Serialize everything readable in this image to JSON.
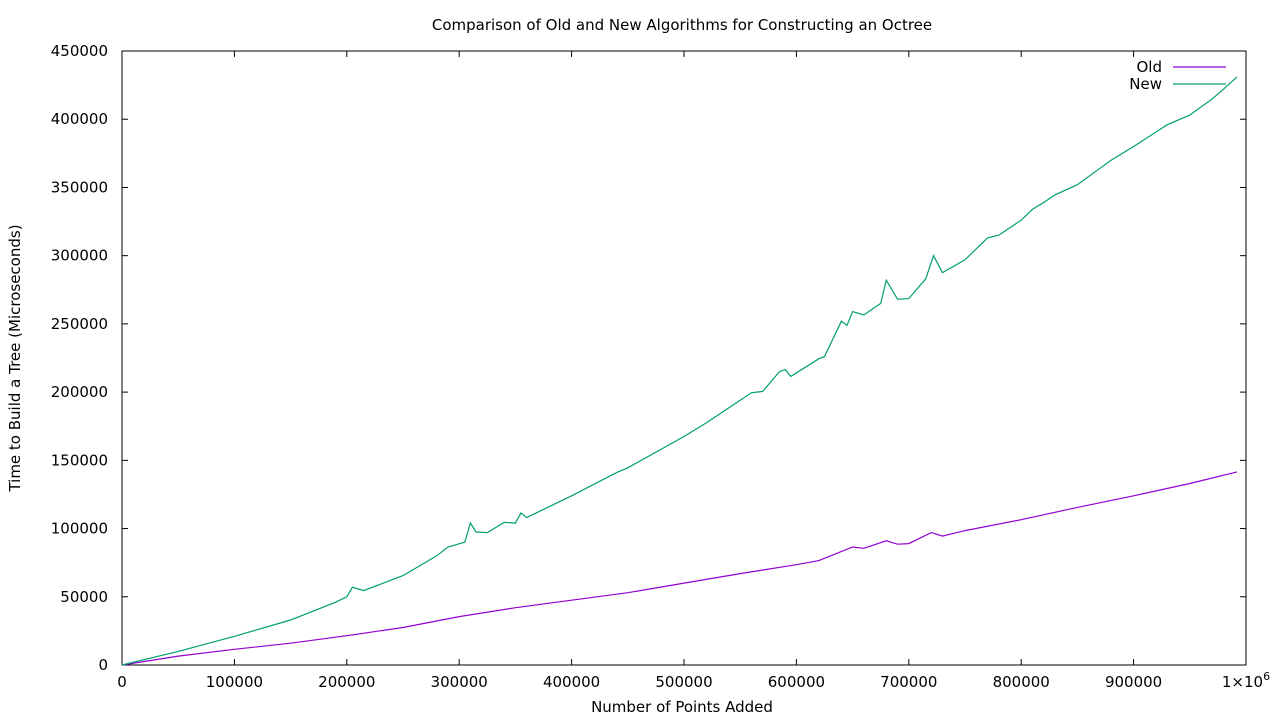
{
  "chart_data": {
    "type": "line",
    "title": "Comparison of Old and New Algorithms for Constructing an Octree",
    "xlabel": "Number of Points Added",
    "ylabel": "Time to Build a Tree (Microseconds)",
    "xlim": [
      0,
      1000000
    ],
    "ylim": [
      0,
      450000
    ],
    "x_ticks": [
      {
        "value": 0,
        "label": "0"
      },
      {
        "value": 100000,
        "label": "100000"
      },
      {
        "value": 200000,
        "label": "200000"
      },
      {
        "value": 300000,
        "label": "300000"
      },
      {
        "value": 400000,
        "label": "400000"
      },
      {
        "value": 500000,
        "label": "500000"
      },
      {
        "value": 600000,
        "label": "600000"
      },
      {
        "value": 700000,
        "label": "700000"
      },
      {
        "value": 800000,
        "label": "800000"
      },
      {
        "value": 900000,
        "label": "900000"
      },
      {
        "value": 1000000,
        "label": "1×10",
        "sup": "6"
      }
    ],
    "y_ticks": [
      {
        "value": 0,
        "label": "0"
      },
      {
        "value": 50000,
        "label": "50000"
      },
      {
        "value": 100000,
        "label": "100000"
      },
      {
        "value": 150000,
        "label": "150000"
      },
      {
        "value": 200000,
        "label": "200000"
      },
      {
        "value": 250000,
        "label": "250000"
      },
      {
        "value": 300000,
        "label": "300000"
      },
      {
        "value": 350000,
        "label": "350000"
      },
      {
        "value": 400000,
        "label": "400000"
      },
      {
        "value": 450000,
        "label": "450000"
      }
    ],
    "grid": false,
    "legend_position": "top-right",
    "series": [
      {
        "name": "Old",
        "color": "#9400d3",
        "points": [
          [
            0,
            0
          ],
          [
            50000,
            6500
          ],
          [
            100000,
            11500
          ],
          [
            150000,
            16000
          ],
          [
            200000,
            21500
          ],
          [
            250000,
            27500
          ],
          [
            300000,
            35500
          ],
          [
            350000,
            42000
          ],
          [
            400000,
            47500
          ],
          [
            450000,
            53000
          ],
          [
            500000,
            60000
          ],
          [
            550000,
            67000
          ],
          [
            600000,
            73500
          ],
          [
            620000,
            76500
          ],
          [
            650000,
            86500
          ],
          [
            660000,
            85500
          ],
          [
            680000,
            91000
          ],
          [
            690000,
            88500
          ],
          [
            700000,
            89000
          ],
          [
            720000,
            97000
          ],
          [
            730000,
            94500
          ],
          [
            750000,
            98500
          ],
          [
            800000,
            106500
          ],
          [
            850000,
            115500
          ],
          [
            900000,
            124000
          ],
          [
            950000,
            133000
          ],
          [
            992000,
            141500
          ]
        ]
      },
      {
        "name": "New",
        "color": "#009e73",
        "points": [
          [
            0,
            0
          ],
          [
            50000,
            10000
          ],
          [
            100000,
            21000
          ],
          [
            150000,
            33000
          ],
          [
            190000,
            46000
          ],
          [
            200000,
            50000
          ],
          [
            205000,
            57000
          ],
          [
            215000,
            54500
          ],
          [
            250000,
            65500
          ],
          [
            280000,
            80000
          ],
          [
            290000,
            86500
          ],
          [
            305000,
            90000
          ],
          [
            310000,
            104000
          ],
          [
            315000,
            97500
          ],
          [
            325000,
            97000
          ],
          [
            340000,
            104500
          ],
          [
            350000,
            104000
          ],
          [
            355000,
            111500
          ],
          [
            360000,
            108000
          ],
          [
            400000,
            124000
          ],
          [
            440000,
            141000
          ],
          [
            450000,
            144500
          ],
          [
            500000,
            167500
          ],
          [
            520000,
            177500
          ],
          [
            550000,
            194000
          ],
          [
            560000,
            199500
          ],
          [
            570000,
            200500
          ],
          [
            585000,
            215000
          ],
          [
            590000,
            216500
          ],
          [
            595000,
            211500
          ],
          [
            620000,
            224500
          ],
          [
            625000,
            226000
          ],
          [
            640000,
            252000
          ],
          [
            645000,
            249000
          ],
          [
            650000,
            259000
          ],
          [
            660000,
            256500
          ],
          [
            675000,
            265000
          ],
          [
            680000,
            282000
          ],
          [
            690000,
            268000
          ],
          [
            700000,
            268500
          ],
          [
            715000,
            283000
          ],
          [
            722000,
            300000
          ],
          [
            730000,
            287500
          ],
          [
            750000,
            297000
          ],
          [
            770000,
            313000
          ],
          [
            780000,
            315000
          ],
          [
            800000,
            326000
          ],
          [
            810000,
            334000
          ],
          [
            820000,
            339000
          ],
          [
            830000,
            344500
          ],
          [
            850000,
            352000
          ],
          [
            880000,
            370000
          ],
          [
            900000,
            380000
          ],
          [
            930000,
            396000
          ],
          [
            950000,
            403000
          ],
          [
            970000,
            415000
          ],
          [
            980000,
            422000
          ],
          [
            992000,
            431000
          ]
        ]
      }
    ]
  }
}
